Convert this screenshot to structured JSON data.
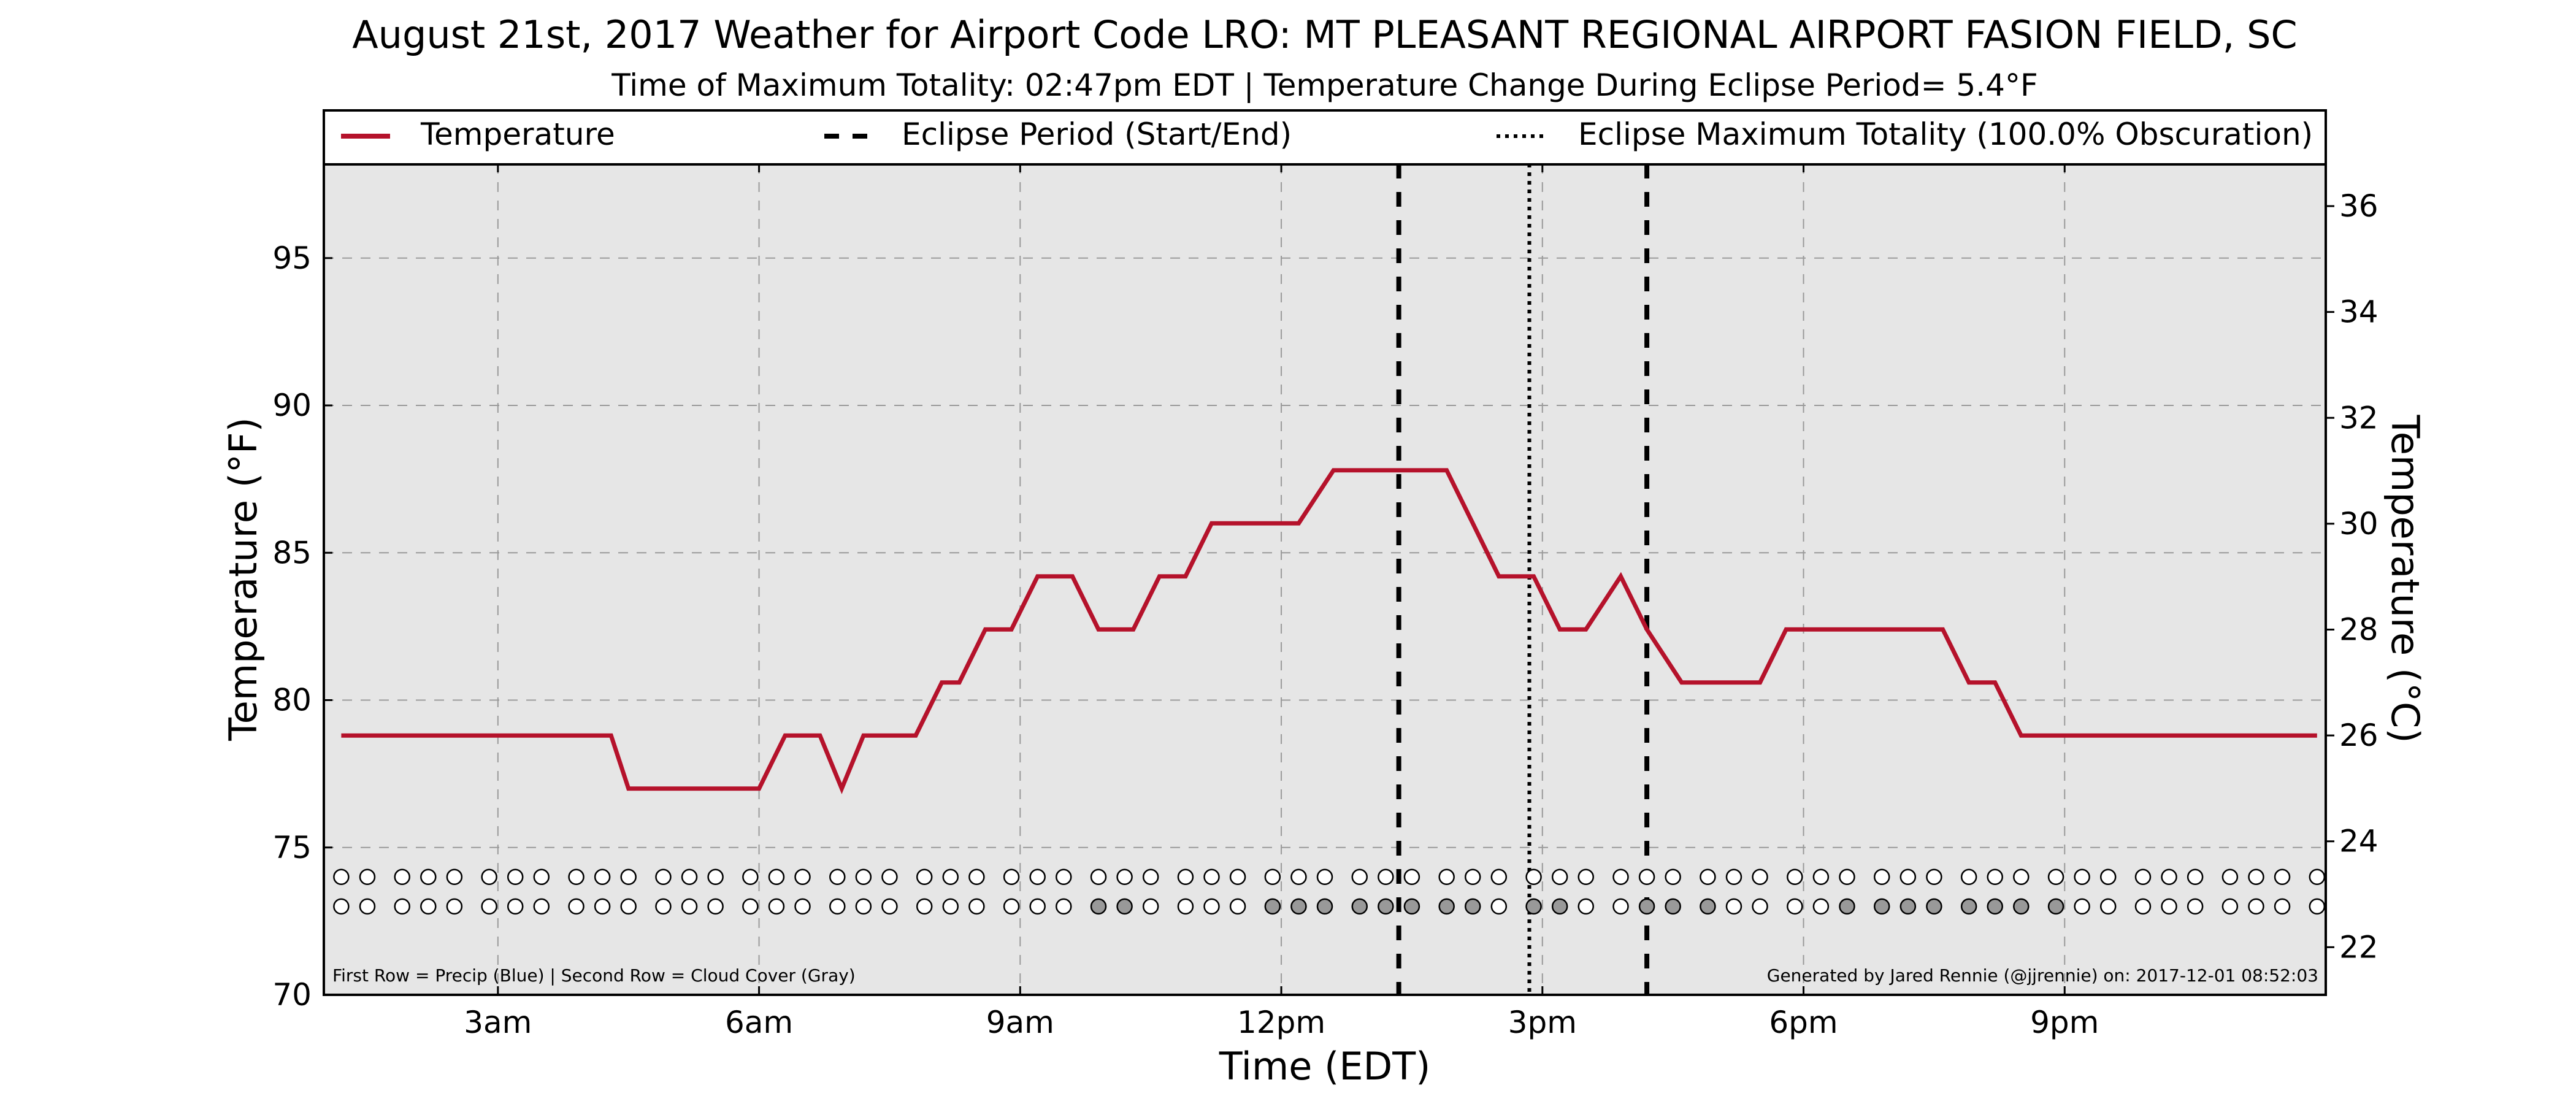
{
  "chart_data": {
    "type": "line",
    "title": "August 21st, 2017 Weather for Airport Code LRO: MT PLEASANT REGIONAL AIRPORT FASION FIELD, SC",
    "subtitle": "Time of Maximum Totality: 02:47pm EDT | Temperature Change During Eclipse Period= 5.4°F",
    "xlabel": "Time (EDT)",
    "ylabel": "Temperature (°F)",
    "ylabel_right": "Temperature (°C)",
    "xlim": [
      1.0,
      24.0
    ],
    "ylim": [
      70,
      98.2
    ],
    "ylim_right": [
      21.1,
      36.8
    ],
    "x_ticks": [
      {
        "x": 3,
        "label": "3am"
      },
      {
        "x": 6,
        "label": "6am"
      },
      {
        "x": 9,
        "label": "9am"
      },
      {
        "x": 12,
        "label": "12pm"
      },
      {
        "x": 15,
        "label": "3pm"
      },
      {
        "x": 18,
        "label": "6pm"
      },
      {
        "x": 21,
        "label": "9pm"
      }
    ],
    "y_ticks": [
      70,
      75,
      80,
      85,
      90,
      95
    ],
    "y_ticks_right": [
      22,
      24,
      26,
      28,
      30,
      32,
      34,
      36
    ],
    "grid": true,
    "legend_position": "top",
    "legend": [
      {
        "label": "Temperature",
        "style": "solid",
        "color": "#b5122b"
      },
      {
        "label": "Eclipse Period (Start/End)",
        "style": "dashed",
        "color": "#000000"
      },
      {
        "label": "Eclipse Maximum Totality (100.0% Obscuration)",
        "style": "dotted",
        "color": "#000000"
      }
    ],
    "series": [
      {
        "name": "Temperature",
        "color": "#b5122b",
        "x": [
          1.2,
          1.5,
          2.0,
          2.5,
          3.0,
          3.5,
          4.0,
          4.3,
          4.5,
          5.0,
          5.5,
          6.0,
          6.3,
          6.5,
          6.7,
          6.95,
          7.2,
          7.5,
          7.8,
          8.1,
          8.3,
          8.6,
          8.9,
          9.2,
          9.6,
          9.9,
          10.3,
          10.6,
          10.9,
          11.2,
          11.5,
          11.9,
          12.2,
          12.6,
          12.9,
          13.2,
          13.5,
          13.9,
          14.2,
          14.5,
          14.9,
          15.2,
          15.5,
          15.9,
          16.2,
          16.6,
          16.9,
          17.3,
          17.5,
          17.8,
          18.2,
          18.6,
          19.0,
          19.3,
          19.6,
          19.9,
          20.2,
          20.5,
          20.9,
          21.5,
          22.0,
          23.0,
          23.9
        ],
        "y": [
          78.8,
          78.8,
          78.8,
          78.8,
          78.8,
          78.8,
          78.8,
          78.8,
          77.0,
          77.0,
          77.0,
          77.0,
          78.8,
          78.8,
          78.8,
          77.0,
          78.8,
          78.8,
          78.8,
          80.6,
          80.6,
          82.4,
          82.4,
          84.2,
          84.2,
          82.4,
          82.4,
          84.2,
          84.2,
          86.0,
          86.0,
          86.0,
          86.0,
          87.8,
          87.8,
          87.8,
          87.8,
          87.8,
          86.0,
          84.2,
          84.2,
          82.4,
          82.4,
          84.2,
          82.4,
          80.6,
          80.6,
          80.6,
          80.6,
          82.4,
          82.4,
          82.4,
          82.4,
          82.4,
          82.4,
          80.6,
          80.6,
          78.8,
          78.8,
          78.8,
          78.8,
          78.8,
          78.8
        ]
      }
    ],
    "eclipse_start": 13.35,
    "eclipse_max": 14.85,
    "eclipse_end": 16.2,
    "marker_rows": {
      "precip": {
        "y": 74.0,
        "fill_color": "#1f5fbf",
        "filled_x": []
      },
      "cloud_cover": {
        "y": 73.0,
        "fill_color": "#999999",
        "filled_x": [
          9.9,
          10.2,
          11.9,
          12.2,
          12.5,
          12.9,
          13.2,
          13.5,
          13.9,
          14.2,
          14.9,
          15.2,
          16.2,
          16.5,
          16.9,
          18.5,
          18.9,
          19.2,
          19.5,
          19.9,
          20.2,
          20.5,
          20.9
        ]
      }
    },
    "marker_x": [
      1.2,
      1.5,
      1.9,
      2.2,
      2.5,
      2.9,
      3.2,
      3.5,
      3.9,
      4.2,
      4.5,
      4.9,
      5.2,
      5.5,
      5.9,
      6.2,
      6.5,
      6.9,
      7.2,
      7.5,
      7.9,
      8.2,
      8.5,
      8.9,
      9.2,
      9.5,
      9.9,
      10.2,
      10.5,
      10.9,
      11.2,
      11.5,
      11.9,
      12.2,
      12.5,
      12.9,
      13.2,
      13.5,
      13.9,
      14.2,
      14.5,
      14.9,
      15.2,
      15.5,
      15.9,
      16.2,
      16.5,
      16.9,
      17.2,
      17.5,
      17.9,
      18.2,
      18.5,
      18.9,
      19.2,
      19.5,
      19.9,
      20.2,
      20.5,
      20.9,
      21.2,
      21.5,
      21.9,
      22.2,
      22.5,
      22.9,
      23.2,
      23.5,
      23.9
    ],
    "footnote_left": "First Row = Precip (Blue) | Second Row = Cloud Cover (Gray)",
    "footnote_right": "Generated by Jared Rennie (@jjrennie) on: 2017-12-01 08:52:03"
  }
}
